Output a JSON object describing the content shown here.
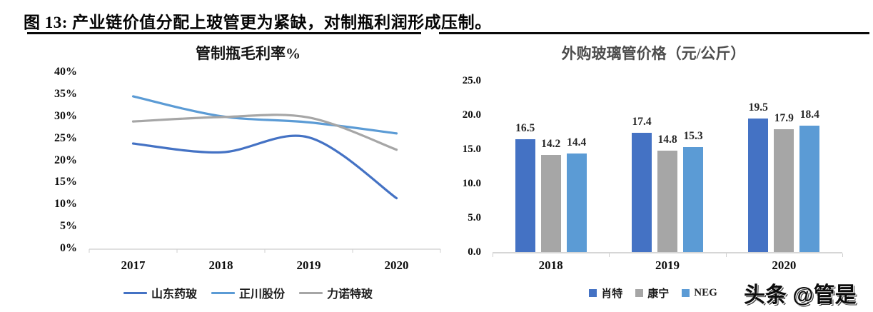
{
  "figure_header": {
    "title": "图 13: 产业链价值分配上玻管更为紧缺，对制瓶利润形成压制。"
  },
  "watermark": "头条 @管是",
  "colors": {
    "dark_blue": "#4472C4",
    "light_blue": "#5B9BD5",
    "gray": "#A6A6A6",
    "axis_line": "#D6D6D6",
    "left_title": "#161616",
    "right_title": "#4D4D4D",
    "caption_underline": "#0A0A0A",
    "data_label": "#262626"
  },
  "chart_data": [
    {
      "type": "line",
      "title": "管制瓶毛利率%",
      "x": [
        "2017",
        "2018",
        "2019",
        "2020"
      ],
      "series": [
        {
          "key": "shandong-pharma-glass",
          "name": "山东药玻",
          "color_key": "dark_blue",
          "values": [
            23.8,
            21.8,
            25.2,
            11.4
          ]
        },
        {
          "key": "zhengchuan-shares",
          "name": "正川股份",
          "color_key": "light_blue",
          "values": [
            34.5,
            30.0,
            28.6,
            26.1
          ]
        },
        {
          "key": "linuo-special-glass",
          "name": "力诺特玻",
          "color_key": "gray",
          "values": [
            28.8,
            29.8,
            29.7,
            22.4
          ]
        }
      ],
      "ylim": [
        0,
        40
      ],
      "yticks": [
        "0%",
        "5%",
        "10%",
        "15%",
        "20%",
        "25%",
        "30%",
        "35%",
        "40%"
      ],
      "grid": false,
      "legend_position": "bottom"
    },
    {
      "type": "bar",
      "title": "外购玻璃管价格（元/公斤）",
      "categories": [
        "2018",
        "2019",
        "2020"
      ],
      "series": [
        {
          "key": "schott",
          "name": "肖特",
          "color_key": "dark_blue",
          "values": [
            16.5,
            17.4,
            19.5
          ]
        },
        {
          "key": "corning",
          "name": "康宁",
          "color_key": "gray",
          "values": [
            14.2,
            14.8,
            17.9
          ]
        },
        {
          "key": "neg",
          "name": "NEG",
          "color_key": "light_blue",
          "values": [
            14.4,
            15.3,
            18.4
          ]
        }
      ],
      "ylim": [
        0,
        25
      ],
      "yticks": [
        "0.0",
        "5.0",
        "10.0",
        "15.0",
        "20.0",
        "25.0"
      ],
      "data_labels": true,
      "grid": false,
      "legend_position": "bottom"
    }
  ]
}
